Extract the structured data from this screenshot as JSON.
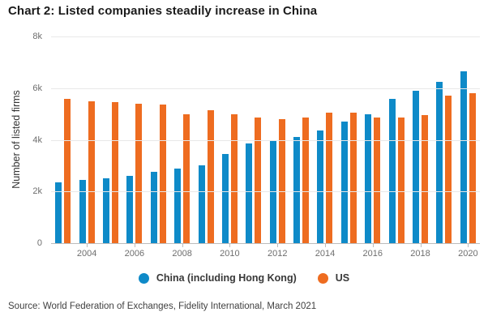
{
  "title": "Chart 2: Listed companies steadily increase in China",
  "source": "Source: World Federation of Exchanges, Fidelity International, March 2021",
  "colors": {
    "china_blue": "#0e8ac8",
    "us_orange": "#ee6c20",
    "gridline": "#e8e8e8",
    "axis_line": "#bcbcbc",
    "tick_text": "#6e6e6e",
    "title_text": "#1b1b1b"
  },
  "chart_data": {
    "type": "bar",
    "title": "Chart 2: Listed companies steadily increase in China",
    "xlabel": "",
    "ylabel": "Number of listed firms",
    "ylim": [
      0,
      8000
    ],
    "grid": true,
    "legend_position": "bottom",
    "yticks": [
      {
        "label": "8k",
        "value": 8000
      },
      {
        "label": "6k",
        "value": 6000
      },
      {
        "label": "4k",
        "value": 4000
      },
      {
        "label": "2k",
        "value": 2000
      },
      {
        "label": "0",
        "value": 0
      }
    ],
    "categories": [
      2003,
      2004,
      2005,
      2006,
      2007,
      2008,
      2009,
      2010,
      2011,
      2012,
      2013,
      2014,
      2015,
      2016,
      2017,
      2018,
      2019,
      2020
    ],
    "x_tick_labels": [
      "2004",
      "2006",
      "2008",
      "2010",
      "2012",
      "2014",
      "2016",
      "2018",
      "2020"
    ],
    "series": [
      {
        "name": "China (including Hong Kong)",
        "color": "#0e8ac8",
        "values": [
          2350,
          2450,
          2500,
          2600,
          2750,
          2900,
          3000,
          3450,
          3850,
          4000,
          4100,
          4350,
          4700,
          5000,
          5600,
          5900,
          6250,
          6650
        ]
      },
      {
        "name": "US",
        "color": "#ee6c20",
        "values": [
          5600,
          5500,
          5450,
          5400,
          5350,
          5000,
          5150,
          5000,
          4850,
          4800,
          4850,
          5050,
          5050,
          4850,
          4850,
          4950,
          5700,
          5800
        ]
      }
    ]
  }
}
